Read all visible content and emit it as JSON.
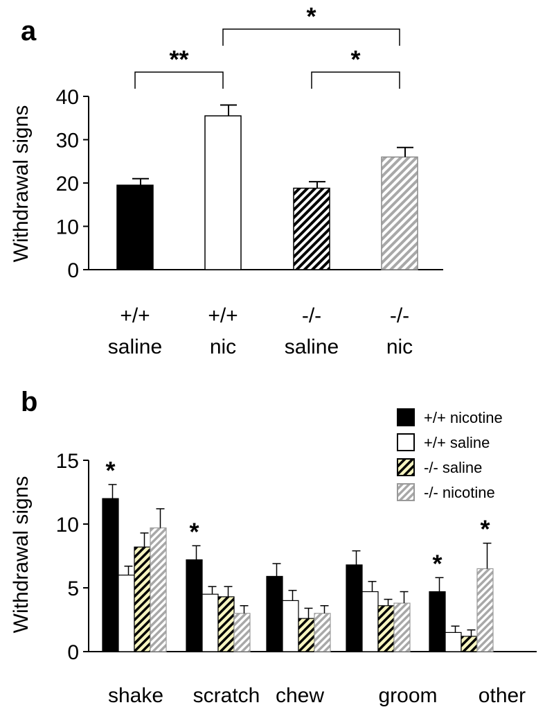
{
  "chart_data": [
    {
      "panel": "a",
      "type": "bar",
      "ylabel": "Withdrawal signs",
      "ylim": [
        0,
        40
      ],
      "yticks": [
        "0",
        "10",
        "20",
        "30",
        "40"
      ],
      "categories": [
        {
          "line1": "+/+",
          "line2": "saline"
        },
        {
          "line1": "+/+",
          "line2": "nic"
        },
        {
          "line1": "-/-",
          "line2": "saline"
        },
        {
          "line1": "-/-",
          "line2": "nic"
        }
      ],
      "values": [
        19.5,
        35.5,
        18.8,
        26.0
      ],
      "errors": [
        1.5,
        2.5,
        1.5,
        2.2
      ],
      "fills": [
        "black",
        "white",
        "black-hatch",
        "gray-hatch"
      ],
      "significance": [
        {
          "from": 0,
          "to": 1,
          "label": "**"
        },
        {
          "from": 2,
          "to": 3,
          "label": "*"
        },
        {
          "from": 1,
          "to": 3,
          "label": "*"
        }
      ]
    },
    {
      "panel": "b",
      "type": "bar",
      "ylabel": "Withdrawal signs",
      "ylim": [
        0,
        15
      ],
      "yticks": [
        "0",
        "5",
        "10",
        "15"
      ],
      "categories": [
        "shake",
        "scratch",
        "chew",
        "groom",
        "other"
      ],
      "series": [
        {
          "name": "+/+ saline",
          "fill": "white",
          "values": [
            6.0,
            4.5,
            4.0,
            4.7,
            1.5
          ],
          "errors": [
            0.7,
            0.6,
            0.8,
            0.8,
            0.5
          ]
        },
        {
          "name": "+/+ nicotine",
          "fill": "black",
          "values": [
            12.0,
            7.2,
            5.9,
            6.8,
            4.7
          ],
          "errors": [
            1.1,
            1.1,
            1.0,
            1.1,
            1.1
          ]
        },
        {
          "name": "-/- saline",
          "fill": "yellow-hatch",
          "values": [
            8.2,
            4.3,
            2.6,
            3.6,
            1.2
          ],
          "errors": [
            1.1,
            0.8,
            0.8,
            0.5,
            0.5
          ]
        },
        {
          "name": "-/- nicotine",
          "fill": "gray-hatch",
          "values": [
            9.7,
            3.0,
            3.0,
            3.8,
            6.5
          ],
          "errors": [
            1.5,
            0.6,
            0.6,
            0.9,
            2.0
          ]
        }
      ],
      "legend_order": [
        1,
        0,
        2,
        3
      ],
      "legend_position": "top-right",
      "stars": [
        {
          "category": 0,
          "series": 1,
          "label": "*"
        },
        {
          "category": 1,
          "series": 1,
          "label": "*"
        },
        {
          "category": 4,
          "series": 1,
          "label": "*"
        },
        {
          "category": 4,
          "series": 3,
          "label": "*"
        }
      ]
    }
  ],
  "colors": {
    "black": "#000000",
    "white": "#ffffff",
    "gray_hatch": "#a8a8a8",
    "yellow_hatch_bg": "#f6f4c0"
  }
}
